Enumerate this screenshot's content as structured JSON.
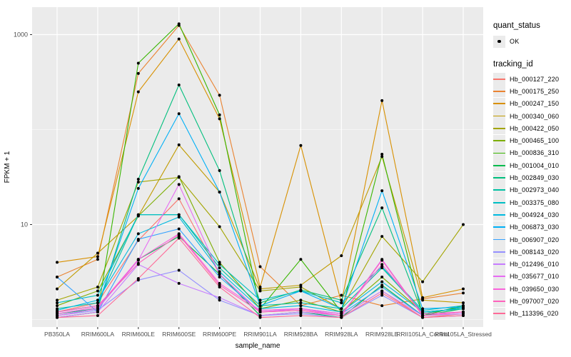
{
  "chart_data": {
    "type": "line",
    "title": "",
    "xlabel": "sample_name",
    "ylabel": "FPKM + 1",
    "y_scale": "log10",
    "panel_bg": "#EBEBEB",
    "grid_color": "#FFFFFF",
    "tick_label_color": "#4D4D4D",
    "point_color": "#000000",
    "y_ticks": [
      {
        "label": "1000",
        "value": 1000
      },
      {
        "label": "10",
        "value": 10
      }
    ],
    "y_minor_gridlines": [
      100,
      1
    ],
    "categories": [
      "PB350LA",
      "RRIM600LA",
      "RRIM600LE",
      "RRIM600SE",
      "RRIM600PE",
      "RRIM901LA",
      "RRIM928BA",
      "RRIM928LA",
      "RRIM928LE",
      "RRII105LA_Control",
      "RRII105LA_Stressed"
    ],
    "series": [
      {
        "name": "Hb_000127_220",
        "color": "#F8766D",
        "values": [
          1.2,
          1.5,
          6.8,
          18.7,
          3.0,
          1.2,
          1.25,
          1.1,
          2.0,
          1.05,
          1.15
        ]
      },
      {
        "name": "Hb_000175_250",
        "color": "#EA8331",
        "values": [
          2.8,
          4.3,
          390,
          1250,
          230,
          3.6,
          1.4,
          1.8,
          1.4,
          1.65,
          1.9
        ]
      },
      {
        "name": "Hb_000247_150",
        "color": "#D89000",
        "values": [
          4.0,
          4.6,
          250,
          900,
          130,
          2.2,
          68,
          1.5,
          202,
          1.7,
          2.1
        ]
      },
      {
        "name": "Hb_000340_060",
        "color": "#C09B00",
        "values": [
          2.1,
          5.0,
          12.3,
          69,
          22,
          2.1,
          2.3,
          4.7,
          52,
          1.6,
          1.5
        ]
      },
      {
        "name": "Hb_000422_050",
        "color": "#A3A500",
        "values": [
          1.6,
          2.2,
          28,
          31.4,
          9.5,
          2.0,
          2.2,
          1.3,
          7.5,
          2.5,
          10
        ]
      },
      {
        "name": "Hb_000465_100",
        "color": "#7CAE00",
        "values": [
          1.4,
          2.0,
          12.3,
          32,
          4.0,
          1.3,
          1.6,
          1.2,
          2.8,
          1.2,
          1.3
        ]
      },
      {
        "name": "Hb_000836_310",
        "color": "#39B600",
        "values": [
          1.05,
          1.2,
          500,
          1300,
          143,
          1.3,
          4.3,
          1.2,
          55,
          1.1,
          1.4
        ]
      },
      {
        "name": "Hb_001004_010",
        "color": "#00BB4E",
        "values": [
          1.1,
          1.3,
          4.3,
          7.5,
          3.0,
          1.1,
          1.2,
          1.05,
          2.3,
          1.1,
          1.3
        ]
      },
      {
        "name": "Hb_002849_030",
        "color": "#00BF7D",
        "values": [
          1.15,
          1.3,
          30,
          295,
          37,
          1.5,
          2.05,
          1.6,
          15,
          1.15,
          1.35
        ]
      },
      {
        "name": "Hb_002973_040",
        "color": "#00C1A3",
        "values": [
          1.3,
          1.5,
          12.7,
          12.7,
          3.5,
          1.4,
          1.5,
          1.3,
          3.5,
          1.2,
          1.3
        ]
      },
      {
        "name": "Hb_003375_080",
        "color": "#00BFC4",
        "values": [
          1.5,
          1.8,
          12.7,
          12.7,
          3.8,
          1.6,
          2.0,
          1.5,
          3.6,
          1.25,
          1.4
        ]
      },
      {
        "name": "Hb_004924_030",
        "color": "#00BAE0",
        "values": [
          1.25,
          1.6,
          8.0,
          12.0,
          3.2,
          1.3,
          1.4,
          1.2,
          2.5,
          1.2,
          1.3
        ]
      },
      {
        "name": "Hb_006873_030",
        "color": "#00B0F6",
        "values": [
          1.2,
          1.4,
          24,
          147,
          22,
          1.4,
          2.0,
          1.3,
          22.7,
          1.3,
          1.35
        ]
      },
      {
        "name": "Hb_006907_020",
        "color": "#35A2FF",
        "values": [
          2.8,
          1.2,
          7.0,
          9.0,
          2.8,
          1.2,
          1.3,
          1.15,
          2.2,
          1.1,
          1.2
        ]
      },
      {
        "name": "Hb_008143_020",
        "color": "#9590FF",
        "values": [
          1.1,
          1.25,
          2.6,
          3.3,
          1.6,
          1.1,
          1.15,
          1.05,
          1.8,
          1.05,
          1.1
        ]
      },
      {
        "name": "Hb_012496_010",
        "color": "#C77CFF",
        "values": [
          1.05,
          1.2,
          3.8,
          2.4,
          1.7,
          1.1,
          1.2,
          1.1,
          2.0,
          1.1,
          1.15
        ]
      },
      {
        "name": "Hb_035677_010",
        "color": "#E76BF3",
        "values": [
          1.1,
          1.3,
          4.2,
          26.4,
          3.0,
          1.2,
          1.3,
          1.1,
          4.3,
          1.1,
          1.2
        ]
      },
      {
        "name": "Hb_039650_030",
        "color": "#FA62DB",
        "values": [
          1.15,
          1.35,
          4.3,
          8.0,
          2.4,
          1.25,
          1.3,
          1.15,
          3.8,
          1.15,
          1.2
        ]
      },
      {
        "name": "Hb_097007_020",
        "color": "#FF62BC",
        "values": [
          1.2,
          1.4,
          3.9,
          7.8,
          2.3,
          1.2,
          1.25,
          1.1,
          4.2,
          1.1,
          1.2
        ]
      },
      {
        "name": "Hb_113396_020",
        "color": "#FF6A98",
        "values": [
          1.05,
          1.1,
          2.7,
          7.2,
          2.2,
          1.05,
          1.1,
          1.05,
          1.9,
          1.05,
          1.1
        ]
      }
    ],
    "legend_position": "right",
    "grid": true
  },
  "legend": {
    "quant_title": "quant_status",
    "quant_items": [
      {
        "label": "OK",
        "marker": "point"
      }
    ],
    "tracking_title": "tracking_id"
  }
}
